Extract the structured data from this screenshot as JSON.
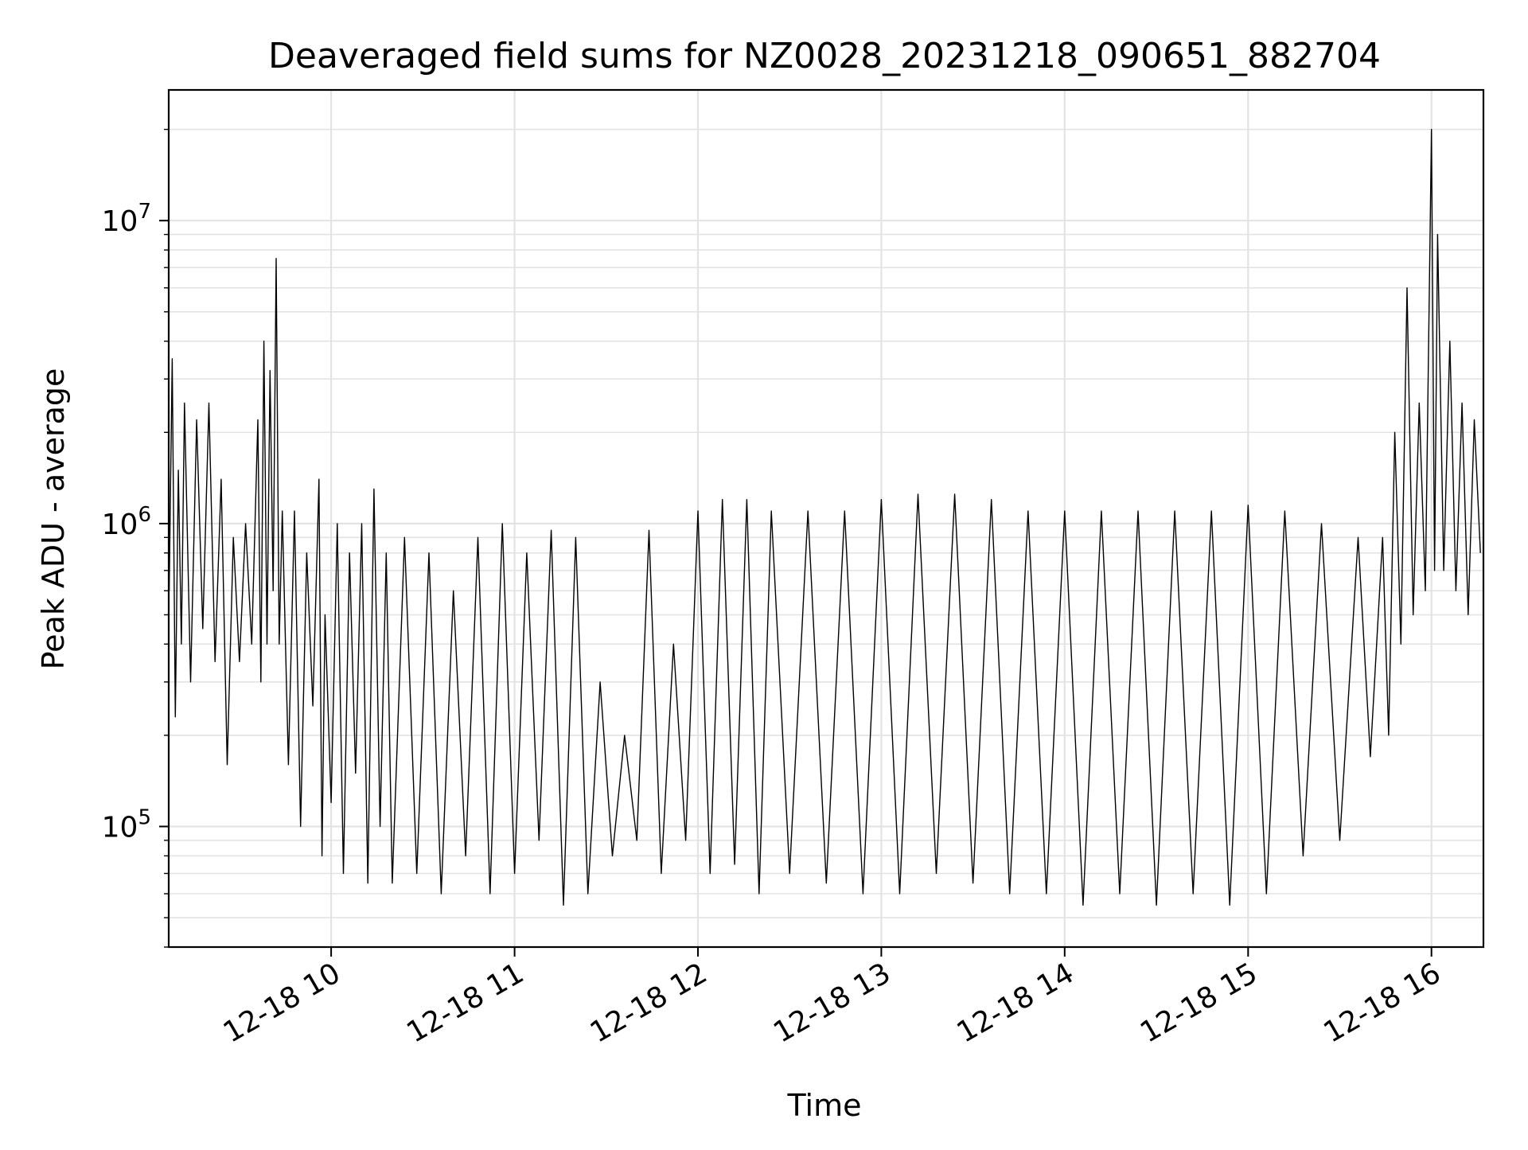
{
  "chart_data": {
    "type": "line",
    "title": "Deaveraged field sums for NZ0028_20231218_090651_882704",
    "xlabel": "Time",
    "ylabel": "Peak ADU - average",
    "yscale": "log",
    "ylim": [
      40000,
      27000000
    ],
    "xlim": [
      "12-18 09:06:51",
      "12-18 16:17:00"
    ],
    "grid": true,
    "line_color": "#000000",
    "x_tick_labels": [
      "12-18 10",
      "12-18 11",
      "12-18 12",
      "12-18 13",
      "12-18 14",
      "12-18 15",
      "12-18 16"
    ],
    "y_tick_labels": [
      {
        "base": "10",
        "exp": "5",
        "value": 100000
      },
      {
        "base": "10",
        "exp": "6",
        "value": 1000000
      },
      {
        "base": "10",
        "exp": "7",
        "value": 10000000
      }
    ],
    "series": [
      {
        "points": [
          [
            "12-18 09:07",
            600000
          ],
          [
            "12-18 09:08",
            3500000
          ],
          [
            "12-18 09:09",
            230000
          ],
          [
            "12-18 09:10",
            1500000
          ],
          [
            "12-18 09:11",
            400000
          ],
          [
            "12-18 09:12",
            2500000
          ],
          [
            "12-18 09:14",
            300000
          ],
          [
            "12-18 09:16",
            2200000
          ],
          [
            "12-18 09:18",
            450000
          ],
          [
            "12-18 09:20",
            2500000
          ],
          [
            "12-18 09:22",
            350000
          ],
          [
            "12-18 09:24",
            1400000
          ],
          [
            "12-18 09:26",
            160000
          ],
          [
            "12-18 09:28",
            900000
          ],
          [
            "12-18 09:30",
            350000
          ],
          [
            "12-18 09:32",
            1000000
          ],
          [
            "12-18 09:34",
            400000
          ],
          [
            "12-18 09:36",
            2200000
          ],
          [
            "12-18 09:37",
            300000
          ],
          [
            "12-18 09:38",
            4000000
          ],
          [
            "12-18 09:39",
            400000
          ],
          [
            "12-18 09:40",
            3200000
          ],
          [
            "12-18 09:41",
            600000
          ],
          [
            "12-18 09:42",
            7500000
          ],
          [
            "12-18 09:43",
            400000
          ],
          [
            "12-18 09:44",
            1100000
          ],
          [
            "12-18 09:46",
            160000
          ],
          [
            "12-18 09:48",
            1100000
          ],
          [
            "12-18 09:50",
            100000
          ],
          [
            "12-18 09:52",
            800000
          ],
          [
            "12-18 09:54",
            250000
          ],
          [
            "12-18 09:56",
            1400000
          ],
          [
            "12-18 09:57",
            80000
          ],
          [
            "12-18 09:58",
            500000
          ],
          [
            "12-18 10:00",
            120000
          ],
          [
            "12-18 10:02",
            1000000
          ],
          [
            "12-18 10:04",
            70000
          ],
          [
            "12-18 10:06",
            800000
          ],
          [
            "12-18 10:08",
            150000
          ],
          [
            "12-18 10:10",
            1000000
          ],
          [
            "12-18 10:12",
            65000
          ],
          [
            "12-18 10:14",
            1300000
          ],
          [
            "12-18 10:16",
            100000
          ],
          [
            "12-18 10:18",
            800000
          ],
          [
            "12-18 10:20",
            65000
          ],
          [
            "12-18 10:24",
            900000
          ],
          [
            "12-18 10:28",
            70000
          ],
          [
            "12-18 10:32",
            800000
          ],
          [
            "12-18 10:36",
            60000
          ],
          [
            "12-18 10:40",
            600000
          ],
          [
            "12-18 10:44",
            80000
          ],
          [
            "12-18 10:48",
            900000
          ],
          [
            "12-18 10:52",
            60000
          ],
          [
            "12-18 10:56",
            1000000
          ],
          [
            "12-18 11:00",
            70000
          ],
          [
            "12-18 11:04",
            800000
          ],
          [
            "12-18 11:08",
            90000
          ],
          [
            "12-18 11:12",
            950000
          ],
          [
            "12-18 11:16",
            55000
          ],
          [
            "12-18 11:20",
            900000
          ],
          [
            "12-18 11:24",
            60000
          ],
          [
            "12-18 11:28",
            300000
          ],
          [
            "12-18 11:32",
            80000
          ],
          [
            "12-18 11:36",
            200000
          ],
          [
            "12-18 11:40",
            90000
          ],
          [
            "12-18 11:44",
            950000
          ],
          [
            "12-18 11:48",
            70000
          ],
          [
            "12-18 11:52",
            400000
          ],
          [
            "12-18 11:56",
            90000
          ],
          [
            "12-18 12:00",
            1100000
          ],
          [
            "12-18 12:04",
            70000
          ],
          [
            "12-18 12:08",
            1200000
          ],
          [
            "12-18 12:12",
            75000
          ],
          [
            "12-18 12:16",
            1200000
          ],
          [
            "12-18 12:20",
            60000
          ],
          [
            "12-18 12:24",
            1100000
          ],
          [
            "12-18 12:30",
            70000
          ],
          [
            "12-18 12:36",
            1100000
          ],
          [
            "12-18 12:42",
            65000
          ],
          [
            "12-18 12:48",
            1100000
          ],
          [
            "12-18 12:54",
            60000
          ],
          [
            "12-18 13:00",
            1200000
          ],
          [
            "12-18 13:06",
            60000
          ],
          [
            "12-18 13:12",
            1250000
          ],
          [
            "12-18 13:18",
            70000
          ],
          [
            "12-18 13:24",
            1250000
          ],
          [
            "12-18 13:30",
            65000
          ],
          [
            "12-18 13:36",
            1200000
          ],
          [
            "12-18 13:42",
            60000
          ],
          [
            "12-18 13:48",
            1100000
          ],
          [
            "12-18 13:54",
            60000
          ],
          [
            "12-18 14:00",
            1100000
          ],
          [
            "12-18 14:06",
            55000
          ],
          [
            "12-18 14:12",
            1100000
          ],
          [
            "12-18 14:18",
            60000
          ],
          [
            "12-18 14:24",
            1100000
          ],
          [
            "12-18 14:30",
            55000
          ],
          [
            "12-18 14:36",
            1100000
          ],
          [
            "12-18 14:42",
            60000
          ],
          [
            "12-18 14:48",
            1100000
          ],
          [
            "12-18 14:54",
            55000
          ],
          [
            "12-18 15:00",
            1150000
          ],
          [
            "12-18 15:06",
            60000
          ],
          [
            "12-18 15:12",
            1100000
          ],
          [
            "12-18 15:18",
            80000
          ],
          [
            "12-18 15:24",
            1000000
          ],
          [
            "12-18 15:30",
            90000
          ],
          [
            "12-18 15:36",
            900000
          ],
          [
            "12-18 15:40",
            170000
          ],
          [
            "12-18 15:44",
            900000
          ],
          [
            "12-18 15:46",
            200000
          ],
          [
            "12-18 15:48",
            2000000
          ],
          [
            "12-18 15:50",
            400000
          ],
          [
            "12-18 15:52",
            6000000
          ],
          [
            "12-18 15:54",
            500000
          ],
          [
            "12-18 15:56",
            2500000
          ],
          [
            "12-18 15:58",
            600000
          ],
          [
            "12-18 16:00",
            20000000
          ],
          [
            "12-18 16:01",
            700000
          ],
          [
            "12-18 16:02",
            9000000
          ],
          [
            "12-18 16:04",
            700000
          ],
          [
            "12-18 16:06",
            4000000
          ],
          [
            "12-18 16:08",
            600000
          ],
          [
            "12-18 16:10",
            2500000
          ],
          [
            "12-18 16:12",
            500000
          ],
          [
            "12-18 16:14",
            2200000
          ],
          [
            "12-18 16:16",
            800000
          ]
        ]
      }
    ]
  }
}
